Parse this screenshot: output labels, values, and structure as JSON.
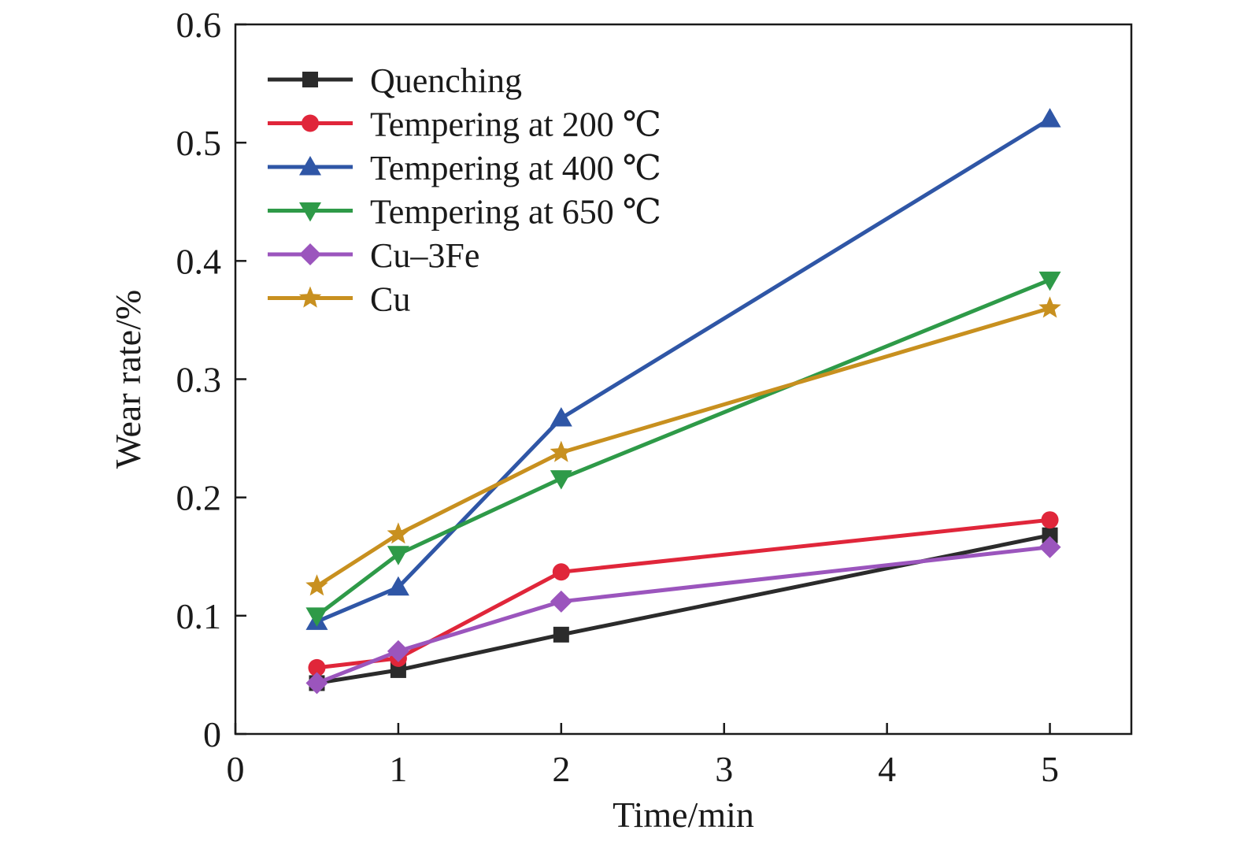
{
  "chart_data": {
    "type": "line",
    "title": "",
    "xlabel": "Time/min",
    "ylabel": "Wear rate/%",
    "xlim": [
      0,
      5.5
    ],
    "ylim": [
      0,
      0.6
    ],
    "xticks": [
      0,
      1,
      2,
      3,
      4,
      5
    ],
    "yticks": [
      0,
      0.1,
      0.2,
      0.3,
      0.4,
      0.5,
      0.6
    ],
    "xtick_labels": [
      "0",
      "1",
      "2",
      "3",
      "4",
      "5"
    ],
    "ytick_labels": [
      "0",
      "0.1",
      "0.2",
      "0.3",
      "0.4",
      "0.5",
      "0.6"
    ],
    "grid": false,
    "legend_position": "top-left",
    "x": [
      0.5,
      1,
      2,
      5
    ],
    "series": [
      {
        "name": "Quenching",
        "color": "#2b2b2b",
        "marker": "square",
        "values": [
          0.043,
          0.054,
          0.084,
          0.168
        ]
      },
      {
        "name": "Tempering at 200 ℃",
        "color": "#e0263a",
        "marker": "circle",
        "values": [
          0.056,
          0.064,
          0.137,
          0.181
        ]
      },
      {
        "name": "Tempering at 400 ℃",
        "color": "#2f56a6",
        "marker": "triangle-up",
        "values": [
          0.095,
          0.124,
          0.267,
          0.52
        ]
      },
      {
        "name": "Tempering at 650 ℃",
        "color": "#2e9a48",
        "marker": "triangle-down",
        "values": [
          0.1,
          0.152,
          0.216,
          0.384
        ]
      },
      {
        "name": "Cu–3Fe",
        "color": "#9b55bd",
        "marker": "diamond",
        "values": [
          0.043,
          0.07,
          0.112,
          0.158
        ]
      },
      {
        "name": "Cu",
        "color": "#c8901f",
        "marker": "star",
        "values": [
          0.125,
          0.169,
          0.238,
          0.36
        ]
      }
    ]
  }
}
